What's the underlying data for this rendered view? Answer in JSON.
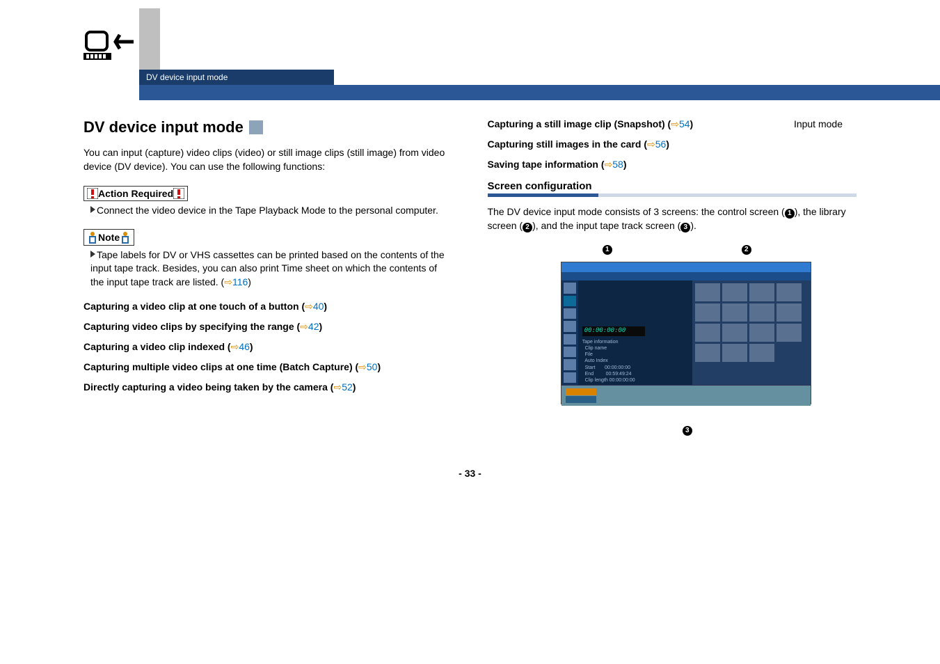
{
  "header": {
    "top_right": "Input mode",
    "tab_label": "DV device input mode"
  },
  "left": {
    "title": "DV device input mode",
    "intro": "You can input (capture) video clips (video) or still image clips (still image) from video device (DV device). You can use the following functions:",
    "action_label": "Action Required",
    "action_text": "Connect the video device in the Tape Playback Mode to the personal computer.",
    "note_label": "Note",
    "note_text_1": "Tape labels for DV or VHS cassettes can be printed based on the contents of the input tape track. Besides, you can also print Time sheet on which the contents of the input tape track are listed. (",
    "note_ref": "116",
    "links": [
      {
        "text": "Capturing a video clip at one touch of a button (",
        "ref": "40",
        "tail": ")"
      },
      {
        "text": "Capturing video clips by specifying the range (",
        "ref": "42",
        "tail": ")"
      },
      {
        "text": "Capturing a video clip indexed (",
        "ref": "46",
        "tail": ")"
      },
      {
        "text": "Capturing multiple video clips at one time (Batch Capture) (",
        "ref": "50",
        "tail": ")"
      },
      {
        "text": "Directly capturing a video being taken by the camera (",
        "ref": "52",
        "tail": ")"
      }
    ]
  },
  "right": {
    "links": [
      {
        "text": "Capturing a still image clip (Snapshot) (",
        "ref": "54",
        "tail": ")"
      },
      {
        "text": "Capturing still images in the card (",
        "ref": "56",
        "tail": ")"
      },
      {
        "text": "Saving tape information (",
        "ref": "58",
        "tail": ")"
      }
    ],
    "section_title": "Screen configuration",
    "section_text_1": "The DV device input mode consists of 3 screens: the control screen (",
    "section_text_2": "), the library screen (",
    "section_text_3": "), and the input tape track screen (",
    "section_text_4": ").",
    "lcd": "00:00:00:00",
    "tape_info": "Tape information\n  Clip name\n  File\n  Auto Index\n  Start       00:00:00:00\n  End         00:59:49:24\n  Clip length 00:00:00:00",
    "callouts": {
      "c1": "1",
      "c2": "2",
      "c3": "3"
    }
  },
  "pagenum": "- 33 -"
}
